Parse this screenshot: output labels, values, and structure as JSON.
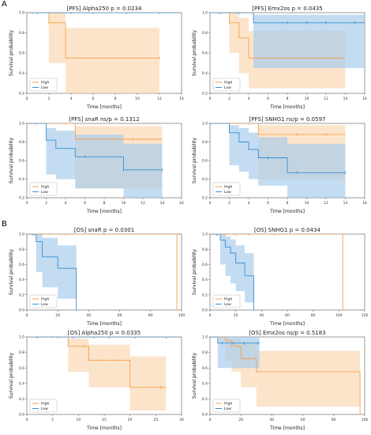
{
  "figure": {
    "panel_a": "A",
    "panel_b": "B"
  },
  "colors": {
    "high": "#f5a04a",
    "low": "#3a8fd1",
    "high_band": "#fbd8b5",
    "low_band": "#a9cdeb"
  },
  "chart_data": [
    {
      "type": "line",
      "title": "[PFS] Alpha250 p = 0.0234",
      "xlabel": "Time [months]",
      "ylabel": "Survival probability",
      "xlim": [
        0,
        14
      ],
      "ylim": [
        0.2,
        1.0
      ],
      "xticks": [
        0,
        2,
        4,
        6,
        8,
        10,
        12,
        14
      ],
      "xtick_labels": [
        "0",
        "2",
        "4",
        "6",
        "8",
        "10",
        "12",
        "14"
      ],
      "yticks": [
        0.2,
        0.4,
        0.6,
        0.8,
        1.0
      ],
      "ytick_labels": [
        "0.2",
        "0.4",
        "0.6",
        "0.8",
        "1.0"
      ],
      "legend": [
        "High",
        "Low"
      ],
      "legend_position": "bottom-left",
      "series": [
        {
          "name": "High",
          "x": [
            0,
            2,
            3.5,
            12
          ],
          "y": [
            1.0,
            0.9,
            0.55,
            0.55
          ],
          "ci_low": [
            1.0,
            0.5,
            0.2,
            0.2
          ],
          "ci_high": [
            1.0,
            1.0,
            0.85,
            0.85
          ],
          "censor_x": [
            0.5,
            2,
            12
          ]
        },
        {
          "name": "Low",
          "x": [
            0,
            14
          ],
          "y": [
            1.0,
            1.0
          ],
          "censor_x": [
            1,
            4,
            6,
            9,
            12
          ]
        }
      ]
    },
    {
      "type": "line",
      "title": "[PFS] Emx2os p = 0.0435",
      "xlabel": "Time [months]",
      "ylabel": "Survival probability",
      "xlim": [
        0,
        16
      ],
      "ylim": [
        0.2,
        1.0
      ],
      "xticks": [
        0,
        2,
        4,
        6,
        8,
        10,
        12,
        14,
        16
      ],
      "xtick_labels": [
        "0",
        "2",
        "4",
        "6",
        "8",
        "10",
        "12",
        "14",
        "16"
      ],
      "yticks": [
        0.2,
        0.4,
        0.6,
        0.8,
        1.0
      ],
      "ytick_labels": [
        "0.2",
        "0.4",
        "0.6",
        "0.8",
        "1.0"
      ],
      "legend": [
        "High",
        "Low"
      ],
      "legend_position": "bottom-left",
      "series": [
        {
          "name": "High",
          "x": [
            0,
            2,
            3,
            4,
            14
          ],
          "y": [
            1.0,
            0.9,
            0.75,
            0.55,
            0.55
          ],
          "ci_low": [
            1.0,
            0.6,
            0.4,
            0.25,
            0.25
          ],
          "ci_high": [
            1.0,
            1.0,
            0.95,
            0.82,
            0.82
          ],
          "censor_x": [
            1,
            2,
            13
          ]
        },
        {
          "name": "Low",
          "x": [
            0,
            2,
            4.5,
            16
          ],
          "y": [
            1.0,
            1.0,
            0.9,
            0.9
          ],
          "ci_low": [
            1.0,
            1.0,
            0.45,
            0.45
          ],
          "ci_high": [
            1.0,
            1.0,
            0.98,
            0.98
          ],
          "censor_x": [
            1,
            3,
            8,
            10,
            12,
            15
          ]
        }
      ]
    },
    {
      "type": "line",
      "title": "[PFS] snaR ns/p = 0.1312",
      "xlabel": "Time [months]",
      "ylabel": "Survival probability",
      "xlim": [
        0,
        16
      ],
      "ylim": [
        0.2,
        1.0
      ],
      "xticks": [
        0,
        2,
        4,
        6,
        8,
        10,
        12,
        14,
        16
      ],
      "xtick_labels": [
        "0",
        "2",
        "4",
        "6",
        "8",
        "10",
        "12",
        "14",
        "16"
      ],
      "yticks": [
        0.2,
        0.4,
        0.6,
        0.8,
        1.0
      ],
      "ytick_labels": [
        "0.2",
        "0.4",
        "0.6",
        "0.8",
        "1.0"
      ],
      "legend": [
        "High",
        "Low"
      ],
      "legend_position": "bottom-left",
      "series": [
        {
          "name": "High",
          "x": [
            0,
            5,
            14
          ],
          "y": [
            1.0,
            0.83,
            0.83
          ],
          "ci_low": [
            1.0,
            0.3,
            0.3
          ],
          "ci_high": [
            1.0,
            0.97,
            0.97
          ],
          "censor_x": [
            1,
            4,
            9,
            11
          ]
        },
        {
          "name": "Low",
          "x": [
            0,
            2,
            3,
            5,
            10,
            14
          ],
          "y": [
            1.0,
            0.82,
            0.73,
            0.64,
            0.5,
            0.5
          ],
          "ci_low": [
            1.0,
            0.45,
            0.4,
            0.3,
            0.2,
            0.2
          ],
          "ci_high": [
            1.0,
            0.95,
            0.92,
            0.88,
            0.78,
            0.78
          ],
          "censor_x": [
            6,
            10,
            14
          ]
        }
      ]
    },
    {
      "type": "line",
      "title": "[PFS] SNHG1 ns/p = 0.0597",
      "xlabel": "Time [months]",
      "ylabel": "Survival probability",
      "xlim": [
        0,
        16
      ],
      "ylim": [
        0.2,
        1.0
      ],
      "xticks": [
        0,
        2,
        4,
        6,
        8,
        10,
        12,
        14,
        16
      ],
      "xtick_labels": [
        "0",
        "2",
        "4",
        "6",
        "8",
        "10",
        "12",
        "14",
        "16"
      ],
      "yticks": [
        0.2,
        0.4,
        0.6,
        0.8,
        1.0
      ],
      "ytick_labels": [
        "0.2",
        "0.4",
        "0.6",
        "0.8",
        "1.0"
      ],
      "legend": [
        "High",
        "Low"
      ],
      "legend_position": "bottom-left",
      "series": [
        {
          "name": "High",
          "x": [
            0,
            5,
            14
          ],
          "y": [
            1.0,
            0.88,
            0.88
          ],
          "ci_low": [
            1.0,
            0.4,
            0.4
          ],
          "ci_high": [
            1.0,
            0.98,
            0.98
          ],
          "censor_x": [
            2,
            4,
            9,
            12
          ]
        },
        {
          "name": "Low",
          "x": [
            0,
            2,
            3,
            4,
            5,
            8,
            14
          ],
          "y": [
            1.0,
            0.9,
            0.8,
            0.72,
            0.63,
            0.47,
            0.47
          ],
          "ci_low": [
            1.0,
            0.55,
            0.48,
            0.4,
            0.33,
            0.2,
            0.2
          ],
          "ci_high": [
            1.0,
            0.98,
            0.95,
            0.9,
            0.85,
            0.78,
            0.78
          ],
          "censor_x": [
            6,
            9,
            14
          ]
        }
      ]
    },
    {
      "type": "line",
      "title": "[OS] snaR p = 0.0301",
      "xlabel": "Time [months]",
      "ylabel": "Survival probability",
      "xlim": [
        0,
        100
      ],
      "ylim": [
        0.0,
        1.0
      ],
      "xticks": [
        0,
        20,
        40,
        60,
        80,
        100
      ],
      "xtick_labels": [
        "0",
        "20",
        "40",
        "60",
        "80",
        "100"
      ],
      "yticks": [
        0.0,
        0.2,
        0.4,
        0.6,
        0.8,
        1.0
      ],
      "ytick_labels": [
        "0.0",
        "0.2",
        "0.4",
        "0.6",
        "0.8",
        "1.0"
      ],
      "legend": [
        "High",
        "Low"
      ],
      "legend_position": "bottom-left",
      "series": [
        {
          "name": "High",
          "x": [
            0,
            97,
            97
          ],
          "y": [
            1.0,
            1.0,
            0.0
          ],
          "censor_x": [
            5,
            10,
            15,
            25,
            50
          ]
        },
        {
          "name": "Low",
          "x": [
            0,
            6,
            10,
            20,
            32,
            32
          ],
          "y": [
            1.0,
            0.9,
            0.7,
            0.55,
            0.55,
            0.0
          ],
          "ci_low": [
            1.0,
            0.5,
            0.3,
            0.15,
            0.15,
            0.0
          ],
          "ci_high": [
            1.0,
            1.0,
            0.95,
            0.85,
            0.85,
            0.0
          ],
          "censor_x": [
            4
          ]
        }
      ]
    },
    {
      "type": "line",
      "title": "[OS] SNHG1 p = 0.0434",
      "xlabel": "Time [months]",
      "ylabel": "Survival probability",
      "xlim": [
        0,
        120
      ],
      "ylim": [
        0.0,
        1.0
      ],
      "xticks": [
        0,
        20,
        40,
        60,
        80,
        100,
        120
      ],
      "xtick_labels": [
        "0",
        "20",
        "40",
        "60",
        "80",
        "100",
        "120"
      ],
      "yticks": [
        0.0,
        0.2,
        0.4,
        0.6,
        0.8,
        1.0
      ],
      "ytick_labels": [
        "0.0",
        "0.2",
        "0.4",
        "0.6",
        "0.8",
        "1.0"
      ],
      "legend": [
        "High",
        "Low"
      ],
      "legend_position": "bottom-left",
      "series": [
        {
          "name": "High",
          "x": [
            0,
            103,
            103
          ],
          "y": [
            1.0,
            1.0,
            0.0
          ],
          "censor_x": [
            6,
            12,
            20,
            30,
            50
          ]
        },
        {
          "name": "Low",
          "x": [
            0,
            8,
            12,
            16,
            20,
            27,
            34,
            34
          ],
          "y": [
            1.0,
            0.92,
            0.83,
            0.75,
            0.62,
            0.45,
            0.45,
            0.0
          ],
          "ci_low": [
            1.0,
            0.6,
            0.45,
            0.35,
            0.25,
            0.1,
            0.1,
            0.0
          ],
          "ci_high": [
            1.0,
            1.0,
            0.97,
            0.93,
            0.85,
            0.75,
            0.75,
            0.0
          ],
          "censor_x": [
            5
          ]
        }
      ]
    },
    {
      "type": "line",
      "title": "[OS] Alpha250 p = 0.0335",
      "xlabel": "Time [months]",
      "ylabel": "Survival probability",
      "xlim": [
        0,
        30
      ],
      "ylim": [
        0.0,
        1.0
      ],
      "xticks": [
        0,
        5,
        10,
        15,
        20,
        25,
        30
      ],
      "xtick_labels": [
        "0",
        "5",
        "10",
        "15",
        "20",
        "25",
        "30"
      ],
      "yticks": [
        0.0,
        0.2,
        0.4,
        0.6,
        0.8,
        1.0
      ],
      "ytick_labels": [
        "0.0",
        "0.2",
        "0.4",
        "0.6",
        "0.8",
        "1.0"
      ],
      "legend": [
        "High",
        "Low"
      ],
      "legend_position": "bottom-left",
      "series": [
        {
          "name": "High",
          "x": [
            0,
            8,
            12,
            20,
            27
          ],
          "y": [
            1.0,
            0.88,
            0.7,
            0.35,
            0.35
          ],
          "ci_low": [
            1.0,
            0.55,
            0.35,
            0.05,
            0.05
          ],
          "ci_high": [
            1.0,
            0.98,
            0.9,
            0.75,
            0.75
          ],
          "censor_x": [
            5,
            11,
            14,
            17,
            26
          ]
        },
        {
          "name": "Low",
          "x": [
            0,
            30
          ],
          "y": [
            1.0,
            1.0
          ],
          "censor_x": [
            2,
            6,
            9,
            13,
            16,
            21,
            27
          ]
        }
      ]
    },
    {
      "type": "line",
      "title": "[OS] Emx2os ns/p = 0.5183",
      "xlabel": "Time [months]",
      "ylabel": "Survival probability",
      "xlim": [
        0,
        100
      ],
      "ylim": [
        0.0,
        1.0
      ],
      "xticks": [
        0,
        20,
        40,
        60,
        80,
        100
      ],
      "xtick_labels": [
        "0",
        "20",
        "40",
        "60",
        "80",
        "100"
      ],
      "yticks": [
        0.0,
        0.2,
        0.4,
        0.6,
        0.8,
        1.0
      ],
      "ytick_labels": [
        "0.0",
        "0.2",
        "0.4",
        "0.6",
        "0.8",
        "1.0"
      ],
      "legend": [
        "High",
        "Low"
      ],
      "legend_position": "bottom-left",
      "series": [
        {
          "name": "High",
          "x": [
            0,
            10,
            14,
            20,
            30,
            97,
            97
          ],
          "y": [
            1.0,
            0.95,
            0.88,
            0.72,
            0.55,
            0.55,
            0.0
          ],
          "ci_low": [
            1.0,
            0.7,
            0.55,
            0.35,
            0.1,
            0.1,
            0.0
          ],
          "ci_high": [
            1.0,
            1.0,
            0.98,
            0.92,
            0.82,
            0.82,
            0.0
          ],
          "censor_x": [
            3,
            18,
            25
          ]
        },
        {
          "name": "Low",
          "x": [
            0,
            5,
            32
          ],
          "y": [
            1.0,
            0.92,
            0.92
          ],
          "ci_low": [
            1.0,
            0.6,
            0.6
          ],
          "ci_high": [
            1.0,
            1.0,
            1.0
          ],
          "censor_x": [
            8,
            15,
            22,
            31
          ]
        }
      ]
    }
  ]
}
